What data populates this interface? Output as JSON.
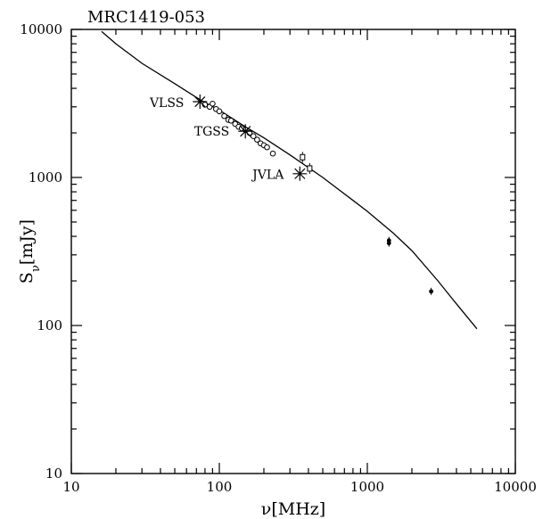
{
  "chart_data": {
    "type": "scatter",
    "title": "MRC1419-053",
    "xlabel": "ν[MHz]",
    "ylabel_main": "S",
    "ylabel_sub": "ν",
    "ylabel_unit": "[mJy]",
    "x_scale": "log",
    "y_scale": "log",
    "xlim": [
      10,
      10000
    ],
    "ylim": [
      10,
      10000
    ],
    "x_ticks": [
      {
        "value": 10,
        "label": "10"
      },
      {
        "value": 100,
        "label": "100"
      },
      {
        "value": 1000,
        "label": "1000"
      },
      {
        "value": 10000,
        "label": "10000"
      }
    ],
    "y_ticks": [
      {
        "value": 10,
        "label": "10"
      },
      {
        "value": 100,
        "label": "100"
      },
      {
        "value": 1000,
        "label": "1000"
      },
      {
        "value": 10000,
        "label": "10000"
      }
    ],
    "grid": false,
    "annotations": [
      {
        "text": "VLSS",
        "x": 74,
        "y": 3200
      },
      {
        "text": "TGSS",
        "x": 150,
        "y": 2050
      },
      {
        "text": "JVLA",
        "x": 350,
        "y": 1050
      }
    ],
    "series": [
      {
        "marker": "open-circle",
        "x": [
          80,
          86,
          90,
          95,
          100,
          108,
          115,
          120,
          128,
          135,
          142,
          150,
          160,
          170,
          180,
          190,
          200,
          210,
          230
        ],
        "y": [
          3100,
          3000,
          3150,
          2900,
          2800,
          2600,
          2450,
          2420,
          2300,
          2200,
          2150,
          2100,
          2000,
          1900,
          1800,
          1700,
          1650,
          1600,
          1450
        ]
      },
      {
        "marker": "star",
        "x": [
          74,
          150,
          350
        ],
        "y": [
          3250,
          2050,
          1060
        ]
      },
      {
        "marker": "open-square-errorbar",
        "x": [
          365,
          408
        ],
        "y": [
          1370,
          1150
        ]
      },
      {
        "marker": "filled-dot",
        "x": [
          1400,
          1400,
          2700
        ],
        "y": [
          375,
          360,
          170
        ]
      },
      {
        "marker": "line",
        "x": [
          16,
          20,
          30,
          50,
          74,
          100,
          150,
          200,
          300,
          500,
          800,
          1000,
          1500,
          2000,
          3000,
          4000,
          5500
        ],
        "y": [
          9700,
          8000,
          5900,
          4300,
          3350,
          2850,
          2200,
          1850,
          1420,
          1000,
          700,
          590,
          420,
          320,
          200,
          140,
          95
        ]
      }
    ]
  }
}
